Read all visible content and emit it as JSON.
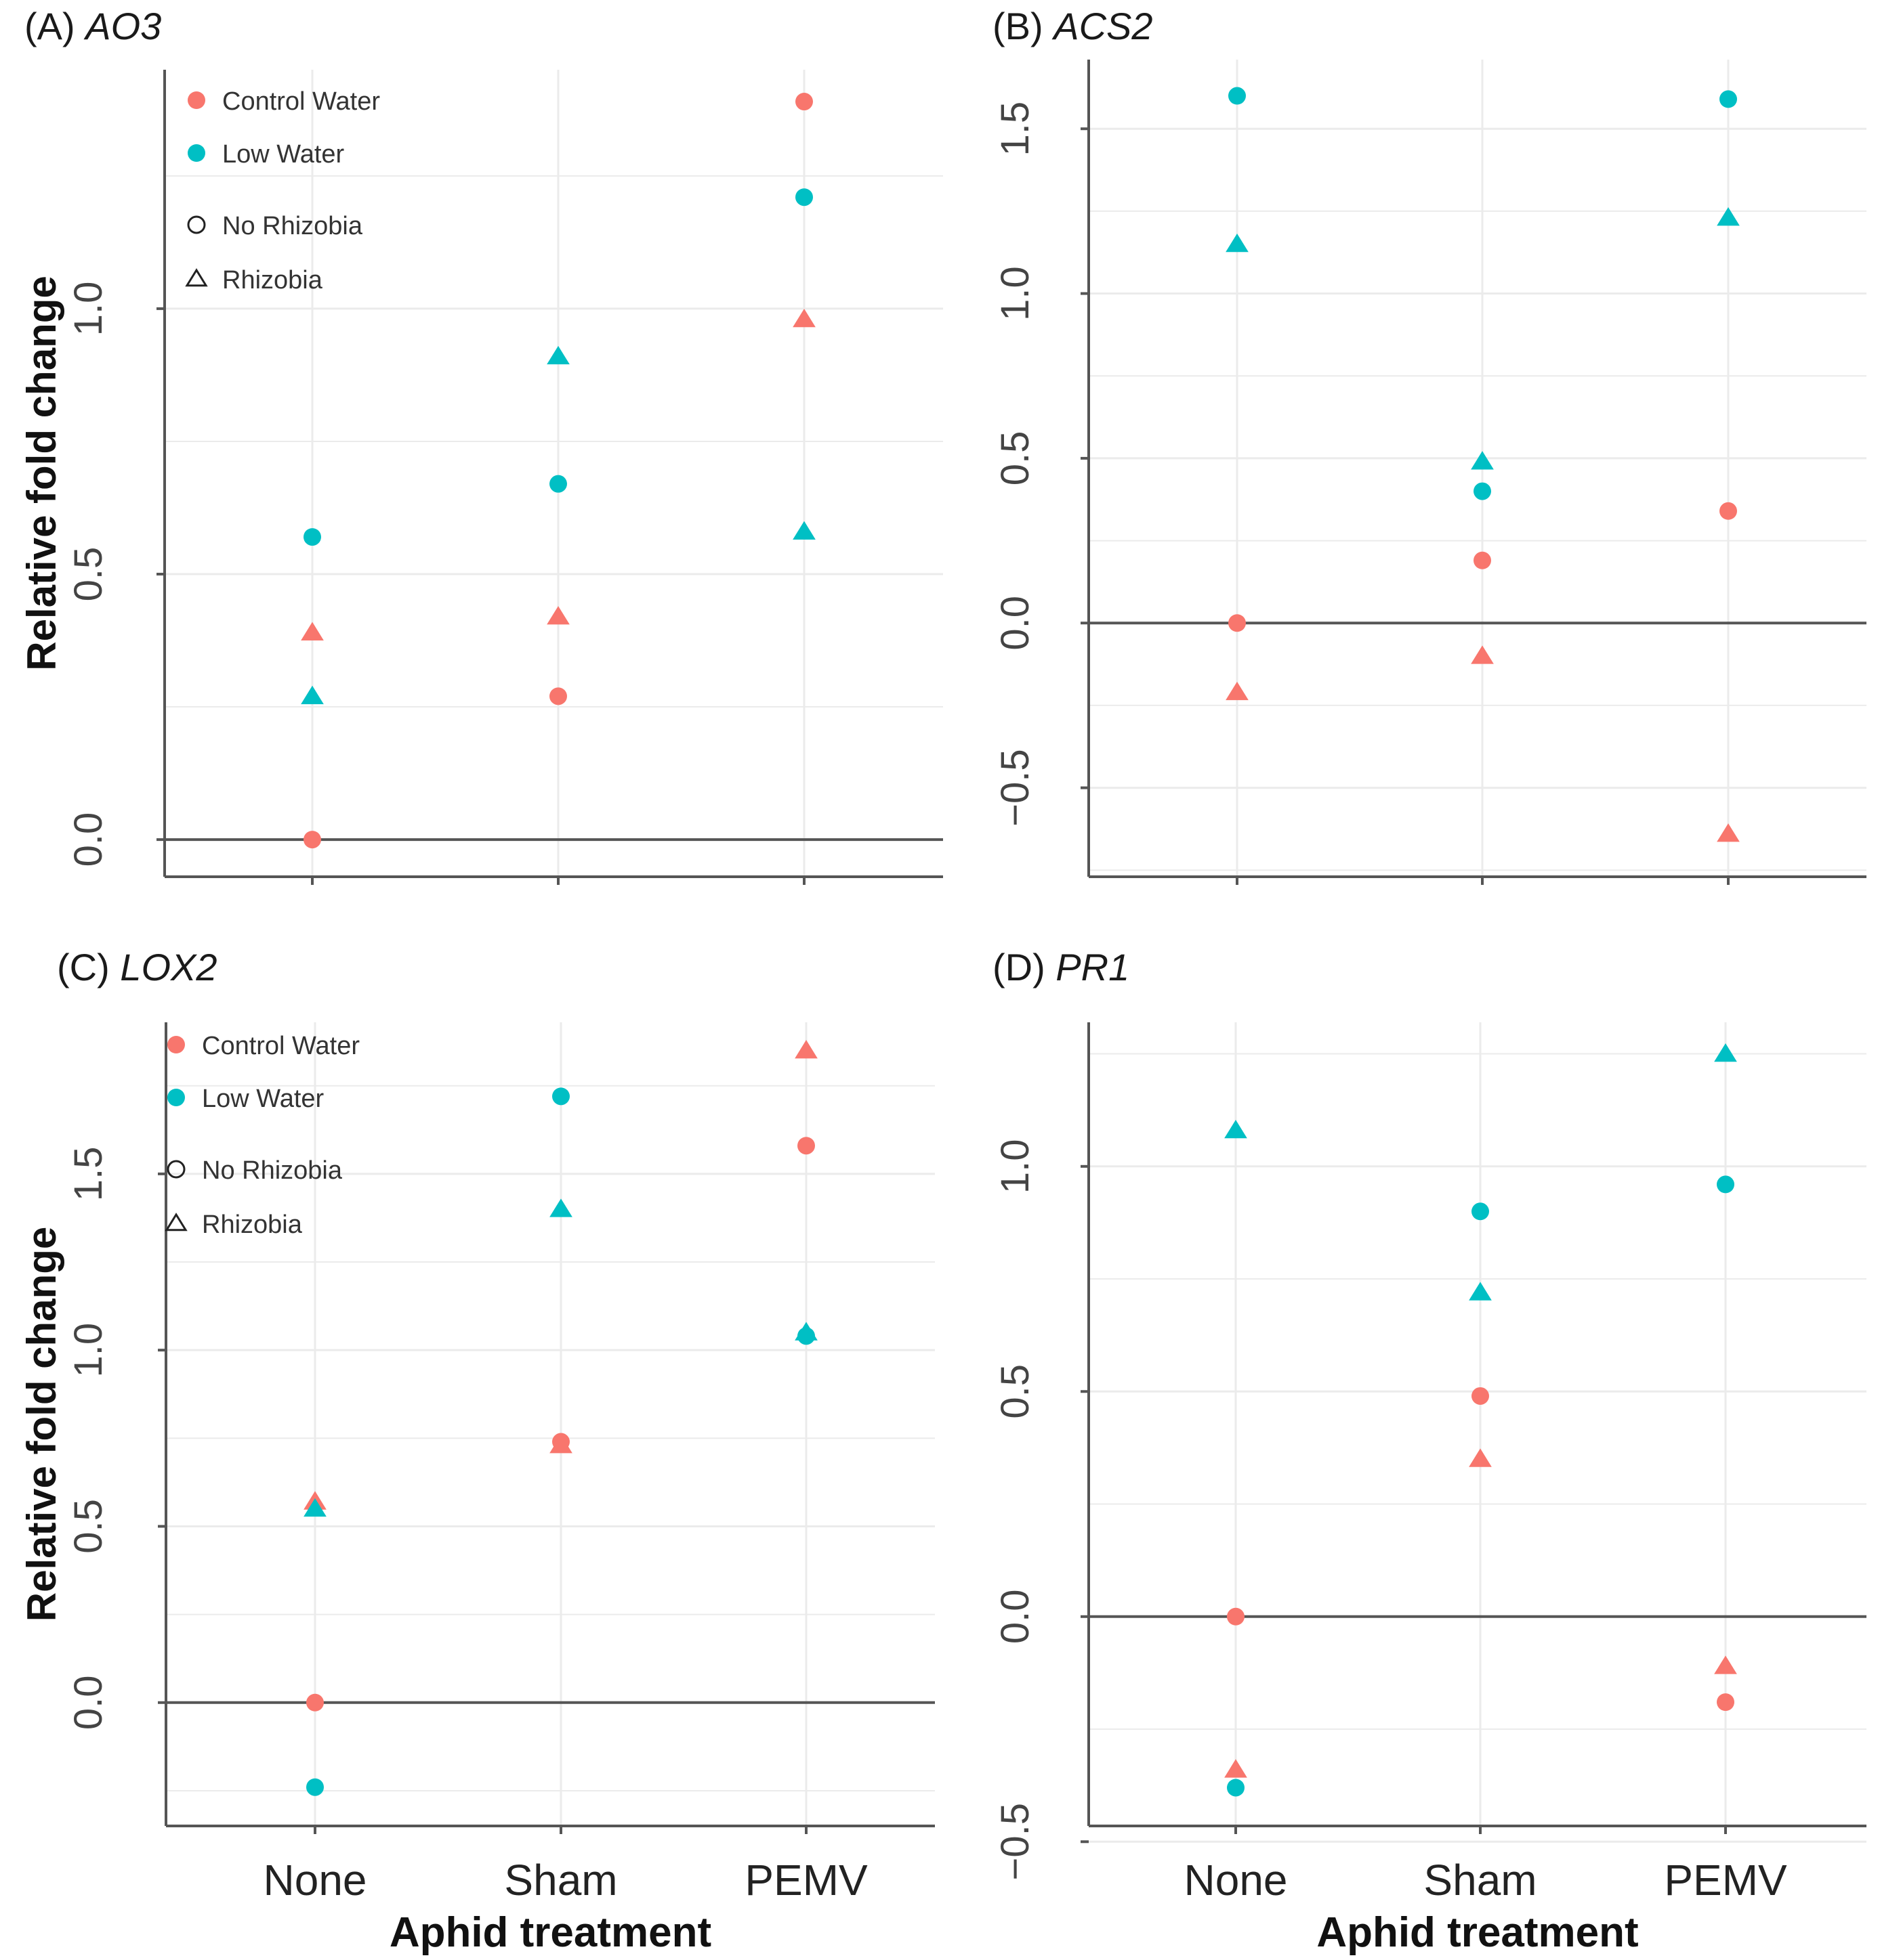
{
  "colors": {
    "control_water": "#F8766D",
    "low_water": "#00BFC4",
    "grid": "#ebebeb",
    "axis": "#555555",
    "zero_line": "#555555"
  },
  "legend": {
    "control_water": "Control Water",
    "low_water": "Low Water",
    "no_rhizobia": "No Rhizobia",
    "rhizobia": "Rhizobia"
  },
  "chart_data": [
    {
      "type": "scatter",
      "panel": "(A)",
      "gene": "AO3",
      "title": "(A) AO3",
      "ylabel": "Relative fold change",
      "xlabel": "",
      "categories": [
        "None",
        "Sham",
        "PEMV"
      ],
      "ylim": [
        -0.07,
        1.45
      ],
      "yticks": [
        0.0,
        0.5,
        1.0
      ],
      "ytick_labels": [
        "0.0",
        "0.5",
        "1.0"
      ],
      "show_x_tick_labels": false,
      "has_legend": true,
      "series": [
        {
          "name": "Control Water / No Rhizobia",
          "water": "control_water",
          "shape": "circle",
          "values": [
            0.0,
            0.27,
            1.39
          ]
        },
        {
          "name": "Control Water / Rhizobia",
          "water": "control_water",
          "shape": "triangle",
          "values": [
            0.39,
            0.42,
            0.98
          ]
        },
        {
          "name": "Low Water / No Rhizobia",
          "water": "low_water",
          "shape": "circle",
          "values": [
            0.57,
            0.67,
            1.21
          ]
        },
        {
          "name": "Low Water / Rhizobia",
          "water": "low_water",
          "shape": "triangle",
          "values": [
            0.27,
            0.91,
            0.58
          ]
        }
      ]
    },
    {
      "type": "scatter",
      "panel": "(B)",
      "gene": "ACS2",
      "title": "(B) ACS2",
      "ylabel": "",
      "xlabel": "",
      "categories": [
        "None",
        "Sham",
        "PEMV"
      ],
      "ylim": [
        -0.77,
        1.71
      ],
      "yticks": [
        -0.5,
        0.0,
        0.5,
        1.0,
        1.5
      ],
      "ytick_labels": [
        "−0.5",
        "0.0",
        "0.5",
        "1.0",
        "1.5"
      ],
      "show_x_tick_labels": false,
      "has_legend": false,
      "series": [
        {
          "name": "Control Water / No Rhizobia",
          "water": "control_water",
          "shape": "circle",
          "values": [
            0.0,
            0.19,
            0.34
          ]
        },
        {
          "name": "Control Water / Rhizobia",
          "water": "control_water",
          "shape": "triangle",
          "values": [
            -0.21,
            -0.1,
            -0.64
          ]
        },
        {
          "name": "Low Water / No Rhizobia",
          "water": "low_water",
          "shape": "circle",
          "values": [
            1.6,
            0.4,
            1.59
          ]
        },
        {
          "name": "Low Water / Rhizobia",
          "water": "low_water",
          "shape": "triangle",
          "values": [
            1.15,
            0.49,
            1.23
          ]
        }
      ]
    },
    {
      "type": "scatter",
      "panel": "(C)",
      "gene": "LOX2",
      "title": "(C) LOX2",
      "ylabel": "Relative fold change",
      "xlabel": "Aphid treatment",
      "categories": [
        "None",
        "Sham",
        "PEMV"
      ],
      "ylim": [
        -0.35,
        1.93
      ],
      "yticks": [
        0.0,
        0.5,
        1.0,
        1.5
      ],
      "ytick_labels": [
        "0.0",
        "0.5",
        "1.0",
        "1.5"
      ],
      "show_x_tick_labels": true,
      "has_legend": true,
      "series": [
        {
          "name": "Control Water / No Rhizobia",
          "water": "control_water",
          "shape": "circle",
          "values": [
            0.0,
            0.74,
            1.58
          ]
        },
        {
          "name": "Control Water / Rhizobia",
          "water": "control_water",
          "shape": "triangle",
          "values": [
            0.57,
            0.73,
            1.85
          ]
        },
        {
          "name": "Low Water / No Rhizobia",
          "water": "low_water",
          "shape": "circle",
          "values": [
            -0.24,
            1.72,
            1.04
          ]
        },
        {
          "name": "Low Water / Rhizobia",
          "water": "low_water",
          "shape": "triangle",
          "values": [
            0.55,
            1.4,
            1.05
          ]
        }
      ]
    },
    {
      "type": "scatter",
      "panel": "(D)",
      "gene": "PR1",
      "title": "(D) PR1",
      "ylabel": "",
      "xlabel": "Aphid treatment",
      "categories": [
        "None",
        "Sham",
        "PEMV"
      ],
      "ylim": [
        -0.465,
        1.32
      ],
      "yticks": [
        -0.5,
        0.0,
        0.5,
        1.0
      ],
      "ytick_labels": [
        "−0.5",
        "0.0",
        "0.5",
        "1.0"
      ],
      "show_x_tick_labels": true,
      "has_legend": false,
      "series": [
        {
          "name": "Control Water / No Rhizobia",
          "water": "control_water",
          "shape": "circle",
          "values": [
            0.0,
            0.49,
            -0.19
          ]
        },
        {
          "name": "Control Water / Rhizobia",
          "water": "control_water",
          "shape": "triangle",
          "values": [
            -0.34,
            0.35,
            -0.11
          ]
        },
        {
          "name": "Low Water / No Rhizobia",
          "water": "low_water",
          "shape": "circle",
          "values": [
            -0.38,
            0.9,
            0.96
          ]
        },
        {
          "name": "Low Water / Rhizobia",
          "water": "low_water",
          "shape": "triangle",
          "values": [
            1.08,
            0.72,
            1.25
          ]
        }
      ]
    }
  ]
}
